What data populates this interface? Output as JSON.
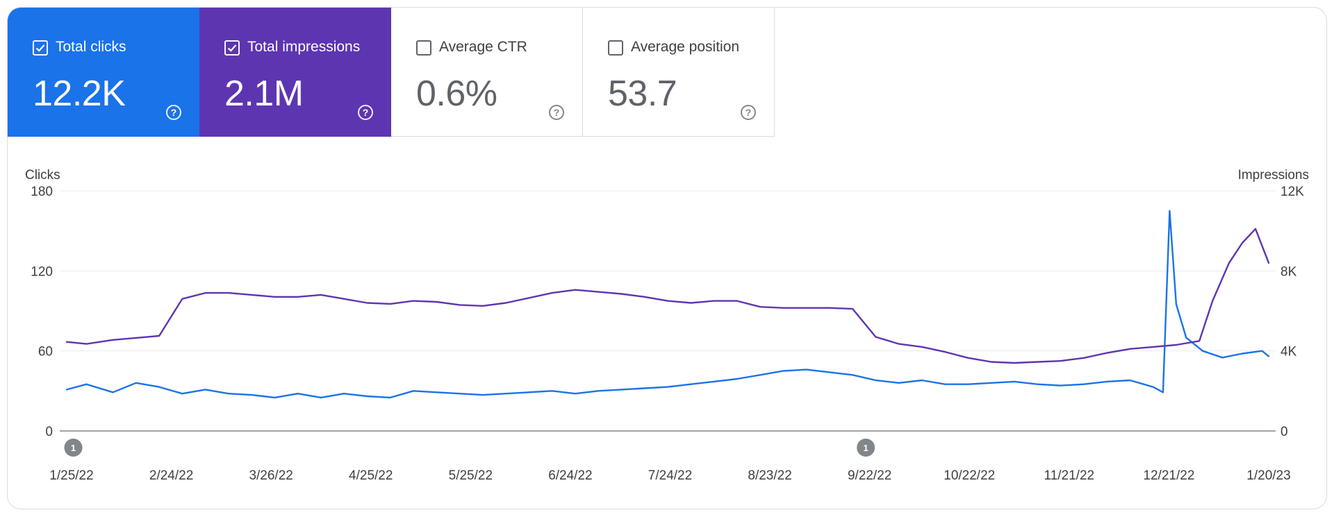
{
  "metrics": [
    {
      "label": "Total clicks",
      "value": "12.2K",
      "checked": true,
      "color": "#1a73e8"
    },
    {
      "label": "Total impressions",
      "value": "2.1M",
      "checked": true,
      "color": "#5e35b1"
    },
    {
      "label": "Average CTR",
      "value": "0.6%",
      "checked": false,
      "color": "#ffffff"
    },
    {
      "label": "Average position",
      "value": "53.7",
      "checked": false,
      "color": "#ffffff"
    }
  ],
  "chart_data": {
    "type": "line",
    "ylabel_left": "Clicks",
    "ylabel_right": "Impressions",
    "yticks_left": [
      "0",
      "60",
      "120",
      "180"
    ],
    "yticks_right": [
      "0",
      "4K",
      "8K",
      "12K"
    ],
    "ylim_left": [
      0,
      180
    ],
    "ylim_right": [
      0,
      12000
    ],
    "grid": true,
    "legend": "none",
    "x_start": "2022-01-23",
    "x_end": "2023-01-22",
    "x_ticks": [
      "1/25/22",
      "2/24/22",
      "3/26/22",
      "4/25/22",
      "5/25/22",
      "6/24/22",
      "7/24/22",
      "8/23/22",
      "9/22/22",
      "10/22/22",
      "11/21/22",
      "12/21/22",
      "1/20/23"
    ],
    "annotations": [
      {
        "date": "2022-01-25",
        "label": "1"
      },
      {
        "date": "2022-09-22",
        "label": "1"
      }
    ],
    "series": [
      {
        "name": "Total clicks",
        "axis": "left",
        "color": "#1a73e8",
        "points": [
          [
            "2022-01-23",
            31
          ],
          [
            "2022-01-29",
            35
          ],
          [
            "2022-02-06",
            29
          ],
          [
            "2022-02-13",
            36
          ],
          [
            "2022-02-20",
            33
          ],
          [
            "2022-02-27",
            28
          ],
          [
            "2022-03-06",
            31
          ],
          [
            "2022-03-13",
            28
          ],
          [
            "2022-03-20",
            27
          ],
          [
            "2022-03-27",
            25
          ],
          [
            "2022-04-03",
            28
          ],
          [
            "2022-04-10",
            25
          ],
          [
            "2022-04-17",
            28
          ],
          [
            "2022-04-24",
            26
          ],
          [
            "2022-05-01",
            25
          ],
          [
            "2022-05-08",
            30
          ],
          [
            "2022-05-15",
            29
          ],
          [
            "2022-05-22",
            28
          ],
          [
            "2022-05-29",
            27
          ],
          [
            "2022-06-05",
            28
          ],
          [
            "2022-06-12",
            29
          ],
          [
            "2022-06-19",
            30
          ],
          [
            "2022-06-26",
            28
          ],
          [
            "2022-07-03",
            30
          ],
          [
            "2022-07-10",
            31
          ],
          [
            "2022-07-17",
            32
          ],
          [
            "2022-07-24",
            33
          ],
          [
            "2022-07-31",
            35
          ],
          [
            "2022-08-07",
            37
          ],
          [
            "2022-08-14",
            39
          ],
          [
            "2022-08-21",
            42
          ],
          [
            "2022-08-28",
            45
          ],
          [
            "2022-09-04",
            46
          ],
          [
            "2022-09-11",
            44
          ],
          [
            "2022-09-18",
            42
          ],
          [
            "2022-09-25",
            38
          ],
          [
            "2022-10-02",
            36
          ],
          [
            "2022-10-09",
            38
          ],
          [
            "2022-10-16",
            35
          ],
          [
            "2022-10-23",
            35
          ],
          [
            "2022-10-30",
            36
          ],
          [
            "2022-11-06",
            37
          ],
          [
            "2022-11-13",
            35
          ],
          [
            "2022-11-20",
            34
          ],
          [
            "2022-11-27",
            35
          ],
          [
            "2022-12-04",
            37
          ],
          [
            "2022-12-11",
            38
          ],
          [
            "2022-12-18",
            33
          ],
          [
            "2022-12-21",
            29
          ],
          [
            "2022-12-23",
            165
          ],
          [
            "2022-12-25",
            95
          ],
          [
            "2022-12-28",
            70
          ],
          [
            "2023-01-02",
            60
          ],
          [
            "2023-01-08",
            55
          ],
          [
            "2023-01-14",
            58
          ],
          [
            "2023-01-20",
            60
          ],
          [
            "2023-01-22",
            56
          ]
        ]
      },
      {
        "name": "Total impressions",
        "axis": "right",
        "color": "#5e35b1",
        "points": [
          [
            "2022-01-23",
            4450
          ],
          [
            "2022-01-29",
            4350
          ],
          [
            "2022-02-06",
            4550
          ],
          [
            "2022-02-13",
            4650
          ],
          [
            "2022-02-20",
            4750
          ],
          [
            "2022-02-27",
            6600
          ],
          [
            "2022-03-06",
            6900
          ],
          [
            "2022-03-13",
            6900
          ],
          [
            "2022-03-20",
            6800
          ],
          [
            "2022-03-27",
            6700
          ],
          [
            "2022-04-03",
            6700
          ],
          [
            "2022-04-10",
            6800
          ],
          [
            "2022-04-17",
            6600
          ],
          [
            "2022-04-24",
            6400
          ],
          [
            "2022-05-01",
            6350
          ],
          [
            "2022-05-08",
            6500
          ],
          [
            "2022-05-15",
            6450
          ],
          [
            "2022-05-22",
            6300
          ],
          [
            "2022-05-29",
            6250
          ],
          [
            "2022-06-05",
            6400
          ],
          [
            "2022-06-12",
            6650
          ],
          [
            "2022-06-19",
            6900
          ],
          [
            "2022-06-26",
            7050
          ],
          [
            "2022-07-03",
            6950
          ],
          [
            "2022-07-10",
            6850
          ],
          [
            "2022-07-17",
            6700
          ],
          [
            "2022-07-24",
            6500
          ],
          [
            "2022-07-31",
            6400
          ],
          [
            "2022-08-07",
            6500
          ],
          [
            "2022-08-14",
            6500
          ],
          [
            "2022-08-21",
            6200
          ],
          [
            "2022-08-28",
            6150
          ],
          [
            "2022-09-04",
            6150
          ],
          [
            "2022-09-11",
            6150
          ],
          [
            "2022-09-18",
            6100
          ],
          [
            "2022-09-25",
            4700
          ],
          [
            "2022-10-02",
            4350
          ],
          [
            "2022-10-09",
            4200
          ],
          [
            "2022-10-16",
            3950
          ],
          [
            "2022-10-23",
            3650
          ],
          [
            "2022-10-30",
            3450
          ],
          [
            "2022-11-06",
            3400
          ],
          [
            "2022-11-13",
            3450
          ],
          [
            "2022-11-20",
            3500
          ],
          [
            "2022-11-27",
            3650
          ],
          [
            "2022-12-04",
            3900
          ],
          [
            "2022-12-11",
            4100
          ],
          [
            "2022-12-18",
            4200
          ],
          [
            "2022-12-25",
            4300
          ],
          [
            "2023-01-01",
            4500
          ],
          [
            "2023-01-05",
            6500
          ],
          [
            "2023-01-10",
            8400
          ],
          [
            "2023-01-14",
            9400
          ],
          [
            "2023-01-18",
            10100
          ],
          [
            "2023-01-22",
            8400
          ]
        ]
      }
    ]
  }
}
